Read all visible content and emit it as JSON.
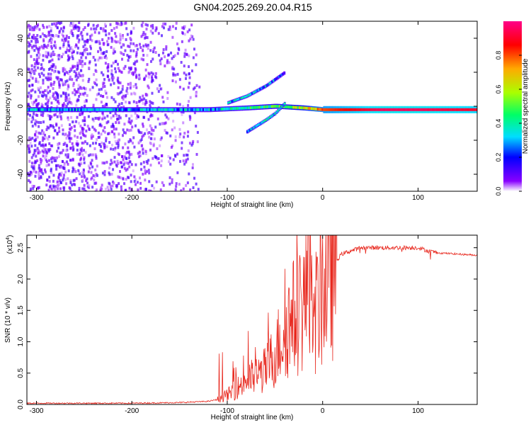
{
  "figure": {
    "title": "GN04.2025.269.20.04.R15"
  },
  "chart_data": [
    {
      "type": "heatmap",
      "title": "GN04.2025.269.20.04.R15",
      "xlabel": "Height of straight line (km)",
      "ylabel": "Frequency (Hz)",
      "xlim": [
        -310,
        162
      ],
      "ylim": [
        -50,
        50
      ],
      "xticks": [
        -300,
        -200,
        -100,
        0,
        100
      ],
      "xtick_labels": [
        "-300",
        "-200",
        "-100",
        "0",
        "100"
      ],
      "yticks": [
        -40,
        -20,
        0,
        20,
        40
      ],
      "ytick_labels": [
        "-40",
        "-20",
        "0",
        "20",
        "40"
      ],
      "colorbar": {
        "label": "Normalized spectral amplitude",
        "range": [
          0,
          1
        ],
        "ticks": [
          0.0,
          0.2,
          0.4,
          0.6,
          0.8
        ],
        "tick_labels": [
          "0.0",
          "0.2",
          "0.4",
          "0.6",
          "0.8"
        ],
        "colormap": [
          "#ffffff",
          "#8800ff",
          "#0000ff",
          "#00ddff",
          "#00ff66",
          "#aaff00",
          "#ffaa00",
          "#ff0000",
          "#ff0088"
        ]
      },
      "features": [
        {
          "name": "main-band",
          "x": [
            -310,
            -200,
            -120,
            -80,
            -50,
            -20,
            0,
            60,
            100,
            162
          ],
          "freq_hz": [
            -2,
            -2,
            -2,
            -1,
            0,
            -1,
            -2,
            -2,
            -2,
            -2
          ],
          "amplitude": [
            0.3,
            0.3,
            0.3,
            0.4,
            0.45,
            0.6,
            0.8,
            0.95,
            0.95,
            0.9
          ]
        },
        {
          "name": "rising-branch",
          "x": [
            -100,
            -80,
            -60,
            -40
          ],
          "freq_hz": [
            2,
            6,
            12,
            20
          ],
          "amplitude": [
            0.3,
            0.35,
            0.3,
            0.2
          ]
        },
        {
          "name": "falling-branch",
          "x": [
            -80,
            -60,
            -50,
            -40
          ],
          "freq_hz": [
            -15,
            -8,
            -4,
            2
          ],
          "amplitude": [
            0.3,
            0.4,
            0.35,
            0.3
          ]
        }
      ]
    },
    {
      "type": "line",
      "xlabel": "Height of straight line (km)",
      "ylabel": "SNR (10 * v/v)",
      "y_multiplier": "(x10",
      "y_exponent": "4",
      "y_multiplier_close": ")",
      "color": "#e8281e",
      "xlim": [
        -310,
        162
      ],
      "ylim": [
        0,
        2.7
      ],
      "xticks": [
        -300,
        -200,
        -100,
        0,
        100
      ],
      "xtick_labels": [
        "-300",
        "-200",
        "-100",
        "0",
        "100"
      ],
      "yticks": [
        0.0,
        0.5,
        1.0,
        1.5,
        2.0,
        2.5
      ],
      "ytick_labels": [
        "0.0",
        "0.5",
        "1.0",
        "1.5",
        "2.0",
        "2.5"
      ],
      "series": [
        {
          "name": "SNR",
          "x": [
            -310,
            -200,
            -150,
            -120,
            -110,
            -100,
            -90,
            -80,
            -70,
            -60,
            -50,
            -40,
            -30,
            -20,
            -15,
            -10,
            0,
            10,
            20,
            30,
            40,
            50,
            60,
            80,
            100,
            110,
            120,
            140,
            162
          ],
          "y": [
            0.02,
            0.02,
            0.03,
            0.05,
            0.08,
            0.15,
            0.25,
            0.4,
            0.45,
            0.55,
            0.8,
            1.2,
            1.4,
            1.6,
            1.8,
            1.3,
            1.9,
            2.2,
            2.4,
            2.45,
            2.5,
            2.5,
            2.5,
            2.5,
            2.5,
            2.45,
            2.42,
            2.4,
            2.38
          ]
        }
      ]
    }
  ]
}
